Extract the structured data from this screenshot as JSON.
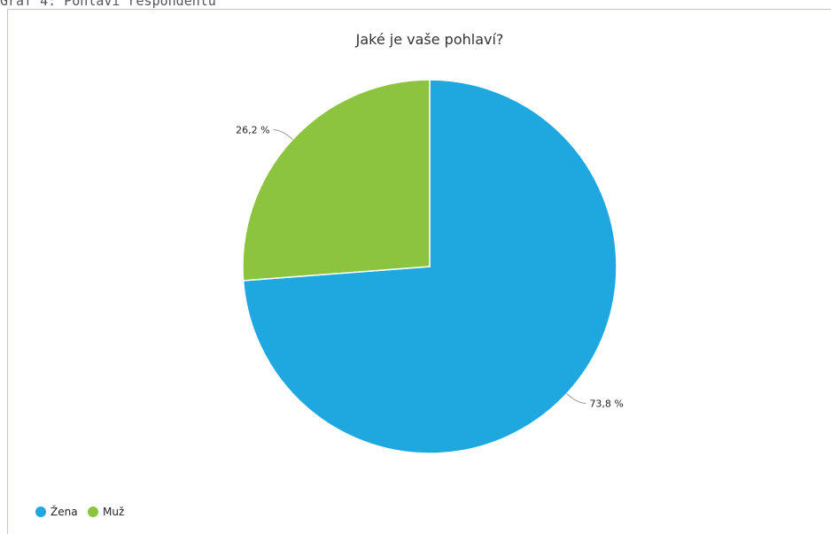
{
  "caption": "Graf 4: Pohlaví respondentů",
  "chart_data": {
    "type": "pie",
    "title": "Jaké je vaše pohlaví?",
    "categories": [
      "Žena",
      "Muž"
    ],
    "values": [
      73.8,
      26.2
    ],
    "labels": [
      "73,8 %",
      "26,2 %"
    ],
    "colors": [
      "#1fa8e0",
      "#8cc43f"
    ],
    "legend_position": "bottom-left"
  }
}
